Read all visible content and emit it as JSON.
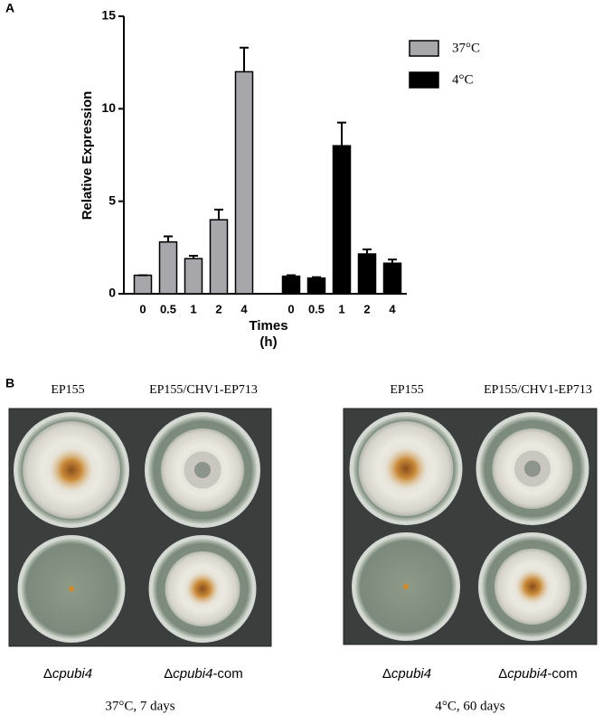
{
  "panel_labels": [
    "A",
    "B"
  ],
  "chart_data": {
    "type": "bar",
    "ylabel": "Relative Expression",
    "xlabel": "Times",
    "xlabel_unit": "(h)",
    "categories": [
      "0",
      "0.5",
      "1",
      "2",
      "4"
    ],
    "series": [
      {
        "name": "37°C",
        "color": "#a7a7ab",
        "values": [
          1,
          2.8,
          1.9,
          4.0,
          12.0
        ],
        "errors": [
          0,
          0.3,
          0.15,
          0.55,
          1.3
        ]
      },
      {
        "name": "4°C",
        "color": "#000000",
        "values": [
          0.95,
          0.85,
          8.0,
          2.15,
          1.65
        ],
        "errors": [
          0.05,
          0.05,
          1.25,
          0.25,
          0.2
        ]
      }
    ],
    "ylim": [
      0,
      15
    ],
    "yticks": [
      0,
      5,
      10,
      15
    ],
    "legend": "upper right"
  },
  "photos": {
    "column_labels": [
      "EP155",
      "EP155/CHV1-EP713"
    ],
    "row_labels": [
      {
        "prefix": "Δ",
        "italic": "cpubi4",
        "suffix": ""
      },
      {
        "prefix": "Δ",
        "italic": "cpubi4",
        "suffix": "-com"
      }
    ],
    "conditions": [
      "37°C, 7 days",
      "4°C, 60 days"
    ]
  }
}
